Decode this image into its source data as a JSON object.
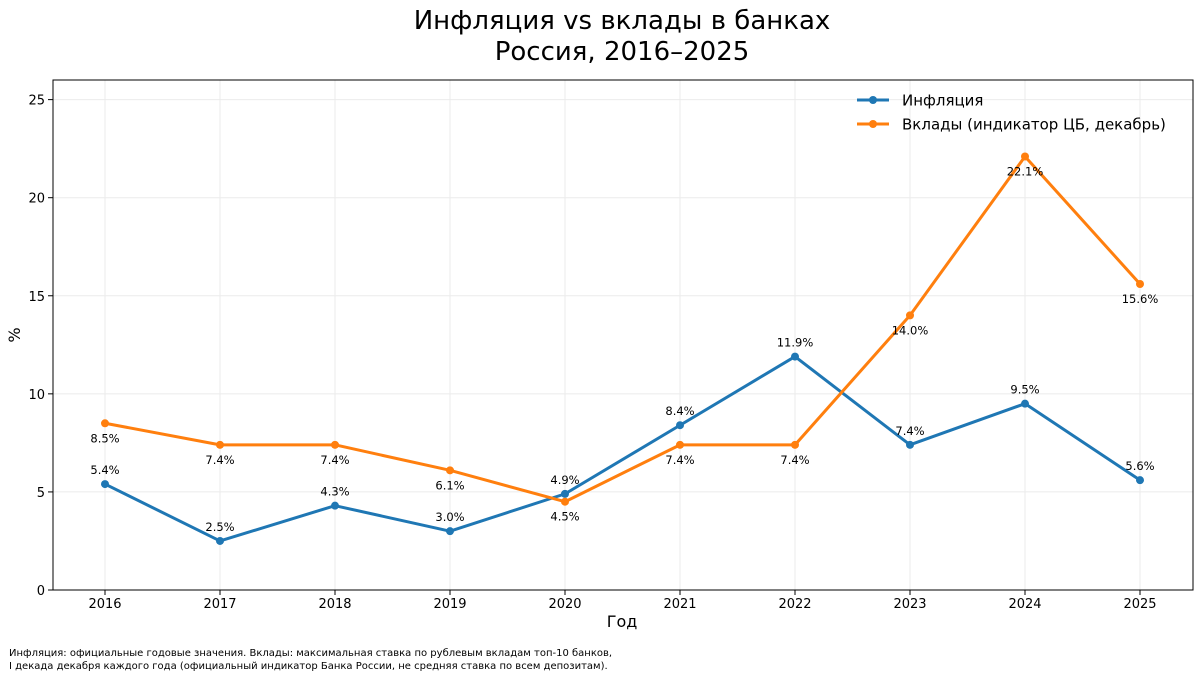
{
  "chart_data": {
    "type": "line",
    "title_lines": [
      "Инфляция vs вклады в банках",
      "Россия, 2016–2025"
    ],
    "xlabel": "Год",
    "ylabel": "%",
    "categories": [
      "2016",
      "2017",
      "2018",
      "2019",
      "2020",
      "2021",
      "2022",
      "2023",
      "2024",
      "2025"
    ],
    "ylim": [
      0,
      26
    ],
    "yticks": [
      0,
      5,
      10,
      15,
      20,
      25
    ],
    "grid": true,
    "legend_position": "top-right",
    "series": [
      {
        "name": "Инфляция",
        "color": "#1f77b4",
        "values": [
          5.4,
          2.5,
          4.3,
          3.0,
          4.9,
          8.4,
          11.9,
          7.4,
          9.5,
          5.6
        ],
        "labels": [
          "5.4%",
          "2.5%",
          "4.3%",
          "3.0%",
          "4.9%",
          "8.4%",
          "11.9%",
          "7.4%",
          "9.5%",
          "5.6%"
        ],
        "label_placement": "above"
      },
      {
        "name": "Вклады (индикатор ЦБ, декабрь)",
        "color": "#ff7f0e",
        "values": [
          8.5,
          7.4,
          7.4,
          6.1,
          4.5,
          7.4,
          7.4,
          14.0,
          22.1,
          15.6
        ],
        "labels": [
          "8.5%",
          "7.4%",
          "7.4%",
          "6.1%",
          "4.5%",
          "7.4%",
          "7.4%",
          "14.0%",
          "22.1%",
          "15.6%"
        ],
        "label_placement": "below"
      }
    ]
  },
  "footnote": {
    "line1": "Инфляция: официальные годовые значения. Вклады: максимальная ставка по рублевым вкладам топ-10 банков,",
    "line2": "I декада декабря каждого года (официальный индикатор Банка России, не средняя ставка по всем депозитам)."
  }
}
